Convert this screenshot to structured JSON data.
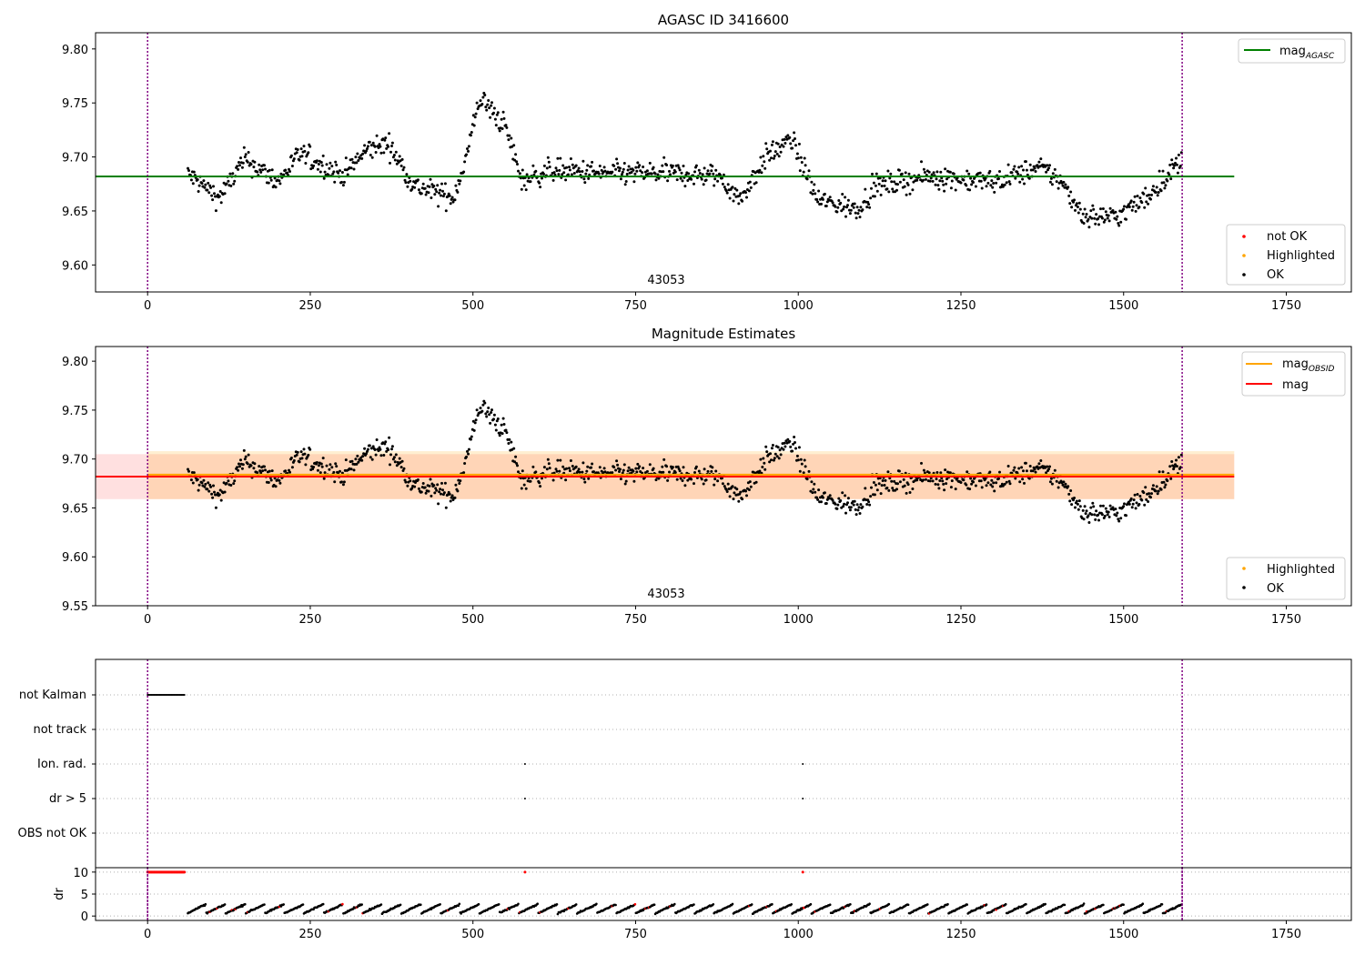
{
  "chart_data": [
    {
      "type": "scatter",
      "title": "AGASC ID 3416600",
      "xlim": [
        -80,
        1850
      ],
      "ylim": [
        9.575,
        9.815
      ],
      "xticks": [
        "0",
        "250",
        "500",
        "750",
        "1000",
        "1250",
        "1500",
        "1750"
      ],
      "yticks": [
        "9.60",
        "9.65",
        "9.70",
        "9.75",
        "9.80"
      ],
      "obsid_label": "43053",
      "obsid_label_x": 795,
      "obs_boundaries": [
        0,
        1590
      ],
      "mag_agasc": 9.682,
      "mag_agasc_xrange": [
        -80,
        1670
      ],
      "legend_lines": [
        {
          "label": "mag",
          "sub": "AGASC",
          "color": "#008000"
        }
      ],
      "legend_markers": [
        {
          "label": "not OK",
          "color": "#ff0000"
        },
        {
          "label": "Highlighted",
          "color": "#ffa500"
        },
        {
          "label": "OK",
          "color": "#000000"
        }
      ]
    },
    {
      "type": "scatter",
      "title": "Magnitude Estimates",
      "xlim": [
        -80,
        1850
      ],
      "ylim": [
        9.55,
        9.815
      ],
      "xticks": [
        "0",
        "250",
        "500",
        "750",
        "1000",
        "1250",
        "1500",
        "1750"
      ],
      "yticks": [
        "9.55",
        "9.60",
        "9.65",
        "9.70",
        "9.75",
        "9.80"
      ],
      "obsid_label": "43053",
      "obsid_label_x": 795,
      "obs_boundaries": [
        0,
        1590
      ],
      "mag_obsid": 9.684,
      "mag_obsid_band": [
        9.659,
        9.708
      ],
      "mag_obsid_xrange": [
        0,
        1670
      ],
      "mag": 9.682,
      "mag_band": [
        9.659,
        9.705
      ],
      "mag_xrange": [
        -80,
        1670
      ],
      "legend_lines": [
        {
          "label": "mag",
          "sub": "OBSID",
          "color": "#ffa500"
        },
        {
          "label": "mag",
          "sub": "",
          "color": "#ff0000"
        }
      ],
      "legend_markers": [
        {
          "label": "Highlighted",
          "color": "#ffa500"
        },
        {
          "label": "OK",
          "color": "#000000"
        }
      ]
    },
    {
      "type": "scatter",
      "xlim": [
        -80,
        1850
      ],
      "obs_boundaries": [
        0,
        1590
      ],
      "flag_labels": [
        "not Kalman",
        "not track",
        "Ion. rad.",
        "dr > 5",
        "OBS not OK"
      ],
      "flag_events": [
        {
          "flag": "not Kalman",
          "x_start": 0,
          "x_end": 58
        },
        {
          "flag": "Ion. rad.",
          "x": [
            580,
            1007
          ]
        },
        {
          "flag": "dr > 5",
          "x": [
            580,
            1007
          ]
        }
      ],
      "dr_ylim": [
        -1,
        11
      ],
      "dr_yticks": [
        "0",
        "5",
        "10"
      ],
      "dr_ylabel": "dr",
      "xticks": [
        "0",
        "250",
        "500",
        "750",
        "1000",
        "1250",
        "1500",
        "1750"
      ]
    }
  ]
}
